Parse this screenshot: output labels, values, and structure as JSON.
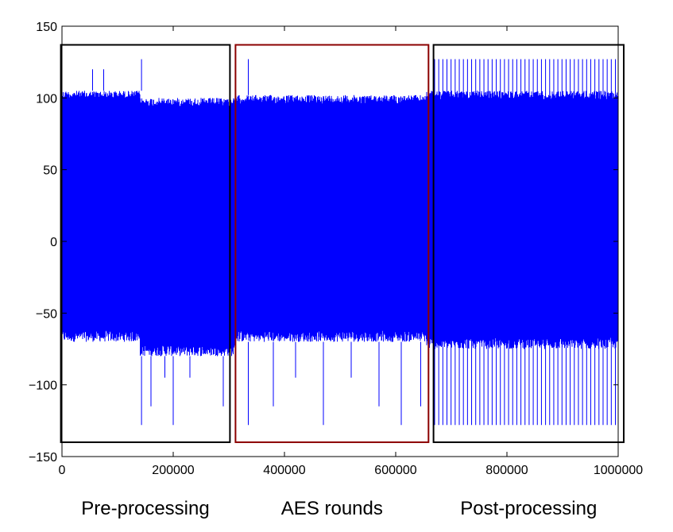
{
  "chart_data": {
    "type": "line",
    "title": "",
    "xlabel": "",
    "ylabel": "",
    "xlim": [
      0,
      1000000
    ],
    "ylim": [
      -150,
      150
    ],
    "x_ticks": [
      "0",
      "200000",
      "400000",
      "600000",
      "800000",
      "1000000"
    ],
    "y_ticks": [
      "150",
      "100",
      "50",
      "0",
      "−50",
      "−100",
      "−150"
    ],
    "grid": false,
    "legend": "none",
    "series": [
      {
        "color": "#0000ff",
        "segments": [
          {
            "x_start": 0,
            "x_end": 140000,
            "upper": 105,
            "lower": -70,
            "upper_spikes": [
              55000,
              75000,
              143000
            ],
            "lower_spikes": []
          },
          {
            "x_start": 140000,
            "x_end": 310000,
            "upper": 100,
            "lower": -80,
            "upper_spikes": [],
            "lower_spikes": [
              143000,
              160000,
              185000,
              200000,
              230000,
              290000
            ]
          },
          {
            "x_start": 310000,
            "x_end": 655000,
            "upper": 102,
            "lower": -70,
            "upper_spikes": [
              335000
            ],
            "lower_spikes": [
              335000,
              380000,
              420000,
              470000,
              520000,
              570000,
              610000,
              645000
            ]
          },
          {
            "x_start": 655000,
            "x_end": 1000000,
            "upper": 105,
            "lower": -75,
            "upper_spikes": [],
            "lower_spikes": []
          }
        ],
        "extremes": {
          "max": 127,
          "min": -128
        },
        "post_processing_spikes": {
          "x_start": 670000,
          "x_end": 995000,
          "count": 45,
          "top": 127,
          "bottom": -128
        }
      }
    ],
    "regions": [
      {
        "label": "Pre-processing",
        "x_start": -2000,
        "x_end": 302000,
        "y_min": -140,
        "y_max": 137,
        "color": "#000000"
      },
      {
        "label": "AES rounds",
        "x_start": 312000,
        "x_end": 659000,
        "y_min": -140,
        "y_max": 137,
        "color": "#8b0000"
      },
      {
        "label": "Post-processing",
        "x_start": 668000,
        "x_end": 1010000,
        "y_min": -140,
        "y_max": 137,
        "color": "#000000"
      }
    ]
  }
}
